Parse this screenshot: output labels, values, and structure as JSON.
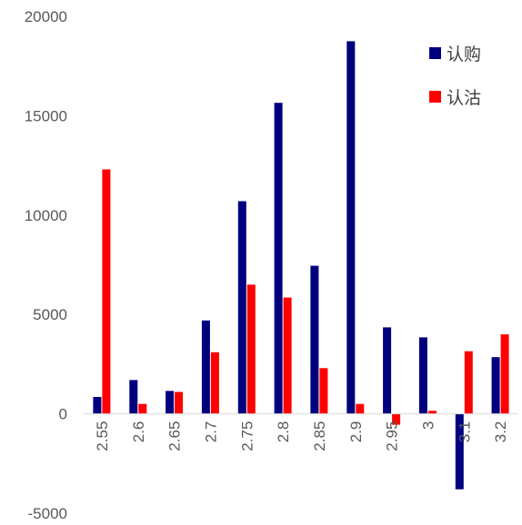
{
  "chart_data": {
    "type": "bar",
    "categories": [
      "2.55",
      "2.6",
      "2.65",
      "2.7",
      "2.75",
      "2.8",
      "2.85",
      "2.9",
      "2.95",
      "3",
      "3.1",
      "3.2"
    ],
    "series": [
      {
        "name": "认购",
        "color": "#00007f",
        "values": [
          850,
          1700,
          1150,
          4700,
          10700,
          15650,
          7450,
          18750,
          4350,
          3850,
          -3800,
          2850
        ]
      },
      {
        "name": "认沽",
        "color": "#ff0000",
        "values": [
          12300,
          500,
          1100,
          3100,
          6500,
          5850,
          2300,
          500,
          -550,
          150,
          3150,
          4000
        ]
      }
    ],
    "ylim": [
      -5000,
      20000
    ],
    "yticks": [
      -5000,
      0,
      5000,
      10000,
      15000,
      20000
    ],
    "legend_position": "top-right",
    "grid": false
  }
}
